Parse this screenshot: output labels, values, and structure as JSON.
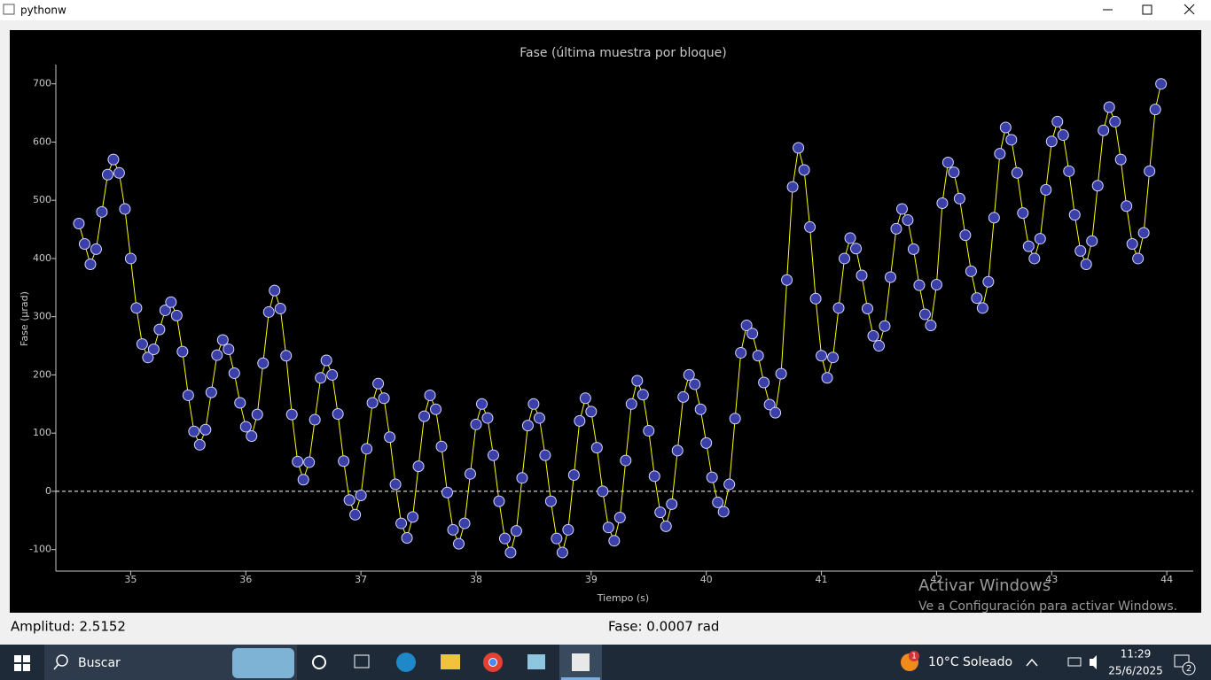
{
  "window": {
    "title": "pythonw"
  },
  "chart_data": {
    "type": "line",
    "title": "Fase (última muestra por bloque)",
    "x_label": "Tiempo (s)",
    "y_label": "Fase (µrad)",
    "x": [
      34.55,
      34.6,
      34.65,
      34.7,
      34.75,
      34.8,
      34.85,
      34.9,
      34.95,
      35,
      35.05,
      35.1,
      35.15,
      35.2,
      35.25,
      35.3,
      35.35,
      35.4,
      35.45,
      35.5,
      35.55,
      35.6,
      35.65,
      35.7,
      35.75,
      35.8,
      35.85,
      35.9,
      35.95,
      36,
      36.05,
      36.1,
      36.15,
      36.2,
      36.25,
      36.3,
      36.35,
      36.4,
      36.45,
      36.5,
      36.55,
      36.6,
      36.65,
      36.7,
      36.75,
      36.8,
      36.85,
      36.9,
      36.95,
      37,
      37.05,
      37.1,
      37.15,
      37.2,
      37.25,
      37.3,
      37.35,
      37.4,
      37.45,
      37.5,
      37.55,
      37.6,
      37.65,
      37.7,
      37.75,
      37.8,
      37.85,
      37.9,
      37.95,
      38,
      38.05,
      38.1,
      38.15,
      38.2,
      38.25,
      38.3,
      38.35,
      38.4,
      38.45,
      38.5,
      38.55,
      38.6,
      38.65,
      38.7,
      38.75,
      38.8,
      38.85,
      38.9,
      38.95,
      39,
      39.05,
      39.1,
      39.15,
      39.2,
      39.25,
      39.3,
      39.35,
      39.4,
      39.45,
      39.5,
      39.55,
      39.6,
      39.65,
      39.7,
      39.75,
      39.8,
      39.85,
      39.9,
      39.95,
      40,
      40.05,
      40.1,
      40.15,
      40.2,
      40.25,
      40.3,
      40.35,
      40.4,
      40.45,
      40.5,
      40.55,
      40.6,
      40.65,
      40.7,
      40.75,
      40.8,
      40.85,
      40.9,
      40.95,
      41,
      41.05,
      41.1,
      41.15,
      41.2,
      41.25,
      41.3,
      41.35,
      41.4,
      41.45,
      41.5,
      41.55,
      41.6,
      41.65,
      41.7,
      41.75,
      41.8,
      41.85,
      41.9,
      41.95,
      42,
      42.05,
      42.1,
      42.15,
      42.2,
      42.25,
      42.3,
      42.35,
      42.4,
      42.45,
      42.5,
      42.55,
      42.6,
      42.65,
      42.7,
      42.75,
      42.8,
      42.85,
      42.9,
      42.95,
      43,
      43.05,
      43.1,
      43.15,
      43.2,
      43.25,
      43.3,
      43.35,
      43.4,
      43.45,
      43.5,
      43.55,
      43.6,
      43.65,
      43.7,
      43.75,
      43.8,
      43.85,
      43.9,
      43.95
    ],
    "values": [
      460,
      425,
      390,
      416,
      480,
      544,
      570,
      547,
      485,
      400,
      315,
      253,
      230,
      244,
      278,
      311,
      325,
      302,
      240,
      165,
      103,
      80,
      106,
      170,
      234,
      260,
      244,
      203,
      152,
      111,
      95,
      132,
      220,
      308,
      345,
      314,
      233,
      132,
      51,
      20,
      50,
      123,
      195,
      225,
      200,
      133,
      52,
      -15,
      -40,
      -7,
      73,
      152,
      185,
      160,
      93,
      12,
      -55,
      -80,
      -44,
      43,
      129,
      165,
      141,
      77,
      -2,
      -66,
      -90,
      -55,
      30,
      115,
      150,
      126,
      62,
      -17,
      -81,
      -105,
      -68,
      23,
      113,
      150,
      126,
      62,
      -17,
      -81,
      -105,
      -66,
      28,
      121,
      160,
      137,
      75,
      0,
      -62,
      -85,
      -45,
      53,
      150,
      190,
      166,
      104,
      26,
      -36,
      -60,
      -22,
      70,
      162,
      200,
      184,
      141,
      83,
      24,
      -19,
      -35,
      12,
      125,
      238,
      285,
      271,
      233,
      187,
      149,
      135,
      202,
      363,
      523,
      590,
      552,
      454,
      331,
      233,
      195,
      230,
      315,
      400,
      435,
      417,
      371,
      314,
      267,
      250,
      284,
      368,
      451,
      485,
      466,
      416,
      354,
      304,
      285,
      355,
      495,
      565,
      548,
      503,
      440,
      378,
      332,
      315,
      360,
      470,
      580,
      625,
      604,
      547,
      478,
      421,
      400,
      434,
      518,
      601,
      635,
      612,
      550,
      475,
      413,
      390,
      430,
      525,
      620,
      660,
      635,
      570,
      490,
      425,
      400,
      444,
      550,
      656,
      700
    ],
    "color": "#ffff00",
    "marker_color": "#3b3fa8",
    "marker_edge_color": "#d4d6ff",
    "reference_line": 0,
    "xlim": [
      34.35,
      44.23
    ],
    "ylim": [
      -137,
      733
    ],
    "xticks": [
      35,
      36,
      37,
      38,
      39,
      40,
      41,
      42,
      43,
      44
    ],
    "yticks": [
      -100,
      0,
      100,
      200,
      300,
      400,
      500,
      600,
      700
    ]
  },
  "status": {
    "amplitude": "Amplitud: 2.5152",
    "phase": "Fase: 0.0007 rad"
  },
  "watermark": {
    "title": "Activar Windows",
    "subtitle": "Ve a Configuración para activar Windows."
  },
  "taskbar": {
    "search": "Buscar",
    "weather": "10°C  Soleado",
    "weather_badge": "1",
    "time": "11:29",
    "date": "25/6/2025",
    "notifications": "2"
  }
}
